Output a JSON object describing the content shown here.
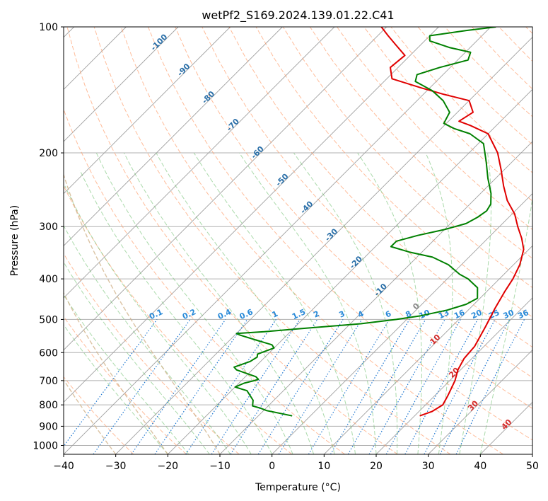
{
  "chart_data": {
    "type": "line",
    "subtype": "skew-T log-p diagram",
    "title": "wetPf2_S169.2024.139.01.22.C41",
    "xlabel": "Temperature (°C)",
    "ylabel": "Pressure (hPa)",
    "xlim": [
      -40,
      50
    ],
    "ylim": [
      1050,
      100
    ],
    "y_scale": "log",
    "x_ticks": [
      "−40",
      "−30",
      "−20",
      "−10",
      "0",
      "10",
      "20",
      "30",
      "40",
      "50"
    ],
    "x_tick_values": [
      -40,
      -30,
      -20,
      -10,
      0,
      10,
      20,
      30,
      40,
      50
    ],
    "y_ticks": [
      "100",
      "200",
      "300",
      "400",
      "500",
      "600",
      "700",
      "800",
      "900",
      "1000"
    ],
    "y_tick_values": [
      100,
      200,
      300,
      400,
      500,
      600,
      700,
      800,
      900,
      1000
    ],
    "grid": true,
    "series": [
      {
        "role": "temperature",
        "color": "#e00000",
        "points": [
          [
            850,
            21
          ],
          [
            830,
            22.5
          ],
          [
            800,
            23.3
          ],
          [
            760,
            22.5
          ],
          [
            700,
            21
          ],
          [
            660,
            19.5
          ],
          [
            620,
            18.5
          ],
          [
            580,
            18.2
          ],
          [
            520,
            16.5
          ],
          [
            470,
            14.8
          ],
          [
            430,
            13.5
          ],
          [
            400,
            12.6
          ],
          [
            370,
            11.2
          ],
          [
            340,
            9
          ],
          [
            320,
            6.5
          ],
          [
            300,
            3.5
          ],
          [
            280,
            0.5
          ],
          [
            260,
            -3.5
          ],
          [
            240,
            -7
          ],
          [
            220,
            -10.5
          ],
          [
            200,
            -14.5
          ],
          [
            180,
            -20
          ],
          [
            172,
            -25
          ],
          [
            168,
            -28
          ],
          [
            160,
            -27
          ],
          [
            150,
            -30
          ],
          [
            145,
            -36
          ],
          [
            140,
            -41.5
          ],
          [
            133,
            -49
          ],
          [
            125,
            -51.5
          ],
          [
            117,
            -51
          ],
          [
            110,
            -55
          ],
          [
            105,
            -58
          ],
          [
            100,
            -61
          ]
        ]
      },
      {
        "role": "dewpoint",
        "color": "#008000",
        "points": [
          [
            850,
            -3.5
          ],
          [
            825,
            -9.5
          ],
          [
            815,
            -11
          ],
          [
            805,
            -13
          ],
          [
            780,
            -14
          ],
          [
            740,
            -17
          ],
          [
            735,
            -18
          ],
          [
            725,
            -20
          ],
          [
            710,
            -19
          ],
          [
            700,
            -17.5
          ],
          [
            695,
            -17
          ],
          [
            685,
            -18
          ],
          [
            670,
            -21
          ],
          [
            660,
            -23
          ],
          [
            650,
            -24
          ],
          [
            640,
            -23
          ],
          [
            630,
            -22
          ],
          [
            615,
            -21.5
          ],
          [
            605,
            -22
          ],
          [
            595,
            -21
          ],
          [
            585,
            -20
          ],
          [
            575,
            -21
          ],
          [
            560,
            -25
          ],
          [
            545,
            -29
          ],
          [
            540,
            -30
          ],
          [
            535,
            -25
          ],
          [
            525,
            -18
          ],
          [
            512,
            -8
          ],
          [
            500,
            -2
          ],
          [
            490,
            2
          ],
          [
            475,
            6
          ],
          [
            460,
            8.5
          ],
          [
            445,
            9.5
          ],
          [
            420,
            7.5
          ],
          [
            400,
            4
          ],
          [
            390,
            1.5
          ],
          [
            380,
            -0.5
          ],
          [
            370,
            -2.5
          ],
          [
            355,
            -7
          ],
          [
            345,
            -12.5
          ],
          [
            335,
            -17
          ],
          [
            325,
            -17
          ],
          [
            315,
            -14
          ],
          [
            305,
            -10
          ],
          [
            295,
            -7
          ],
          [
            285,
            -6
          ],
          [
            275,
            -5.5
          ],
          [
            265,
            -6
          ],
          [
            250,
            -8
          ],
          [
            230,
            -11.5
          ],
          [
            210,
            -15
          ],
          [
            190,
            -19
          ],
          [
            180,
            -23.5
          ],
          [
            175,
            -27.5
          ],
          [
            170,
            -30.5
          ],
          [
            160,
            -31.5
          ],
          [
            150,
            -35
          ],
          [
            142,
            -39
          ],
          [
            135,
            -44
          ],
          [
            130,
            -45
          ],
          [
            125,
            -42
          ],
          [
            120,
            -38
          ],
          [
            115,
            -39
          ],
          [
            112,
            -44
          ],
          [
            108,
            -49
          ],
          [
            105,
            -50
          ],
          [
            102,
            -44
          ],
          [
            100,
            -39
          ]
        ]
      }
    ],
    "background_lines": {
      "isotherms_color": "#a0a0a0",
      "dry_adiabats_color": "#ff9966",
      "moist_adiabats_color": "#66bb66",
      "mixing_ratio_color": "#1f77d0",
      "wet_bulb_color": "#d2b48c"
    },
    "annotations": {
      "isotherm_labels": [
        "-100",
        "-90",
        "-80",
        "-70",
        "-60",
        "-50",
        "-40",
        "-30",
        "-20",
        "-10",
        "0",
        "10",
        "20",
        "30",
        "40"
      ],
      "isotherm_label_values": [
        -100,
        -90,
        -80,
        -70,
        -60,
        -50,
        -40,
        -30,
        -20,
        -10,
        0,
        10,
        20,
        30,
        40
      ],
      "mixing_ratio_labels": [
        "0.1",
        "0.2",
        "0.4",
        "0.6",
        "1",
        "1.5",
        "2",
        "3",
        "4",
        "6",
        "8",
        "10",
        "13",
        "16",
        "20",
        "25",
        "30",
        "36"
      ],
      "mixing_ratio_values": [
        0.1,
        0.2,
        0.4,
        0.6,
        1,
        1.5,
        2,
        3,
        4,
        6,
        8,
        10,
        13,
        16,
        20,
        25,
        30,
        36
      ]
    }
  }
}
